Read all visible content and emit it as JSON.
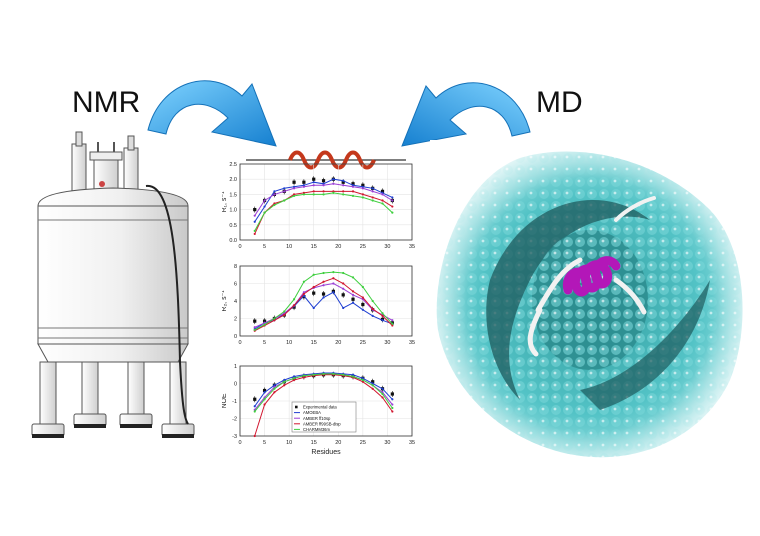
{
  "labels": {
    "left": "NMR",
    "right": "MD"
  },
  "colors": {
    "arrow": "#1e9be3",
    "helix": "#c4381c",
    "protein_surface": "#4fc7c9",
    "md_helix": "#b317b8",
    "experimental": "#111111",
    "amoeba": "#1f3fd1",
    "amber_f10sp": "#9b3fd6",
    "amber_ff99sb": "#d1162f",
    "charmm": "#3fcf3f"
  },
  "chart_data": [
    {
      "type": "line",
      "ylabel": "R₁, s⁻¹",
      "xlabel": "",
      "xlim": [
        0,
        35
      ],
      "ylim": [
        0.0,
        2.5
      ],
      "xticks": [
        0,
        5,
        10,
        15,
        20,
        25,
        30,
        35
      ],
      "yticks": [
        0.0,
        0.5,
        1.0,
        1.5,
        2.0,
        2.5
      ],
      "x": [
        3,
        5,
        7,
        9,
        11,
        13,
        15,
        17,
        19,
        21,
        23,
        25,
        27,
        29,
        31
      ],
      "series": [
        {
          "name": "Experimental data",
          "values": [
            1.0,
            1.3,
            1.5,
            1.6,
            1.9,
            1.9,
            2.0,
            1.95,
            2.0,
            1.9,
            1.85,
            1.8,
            1.7,
            1.6,
            1.3
          ]
        },
        {
          "name": "AMOEBA",
          "values": [
            0.6,
            1.1,
            1.6,
            1.7,
            1.75,
            1.8,
            1.9,
            1.85,
            2.0,
            1.95,
            1.8,
            1.75,
            1.7,
            1.55,
            1.4
          ]
        },
        {
          "name": "AMBER ff10sp",
          "values": [
            0.8,
            1.3,
            1.5,
            1.6,
            1.7,
            1.75,
            1.8,
            1.8,
            1.85,
            1.8,
            1.75,
            1.7,
            1.6,
            1.5,
            1.3
          ]
        },
        {
          "name": "AMBER ff99SB-disp",
          "values": [
            0.2,
            0.9,
            1.2,
            1.3,
            1.5,
            1.55,
            1.6,
            1.6,
            1.6,
            1.6,
            1.6,
            1.5,
            1.4,
            1.3,
            1.1
          ]
        },
        {
          "name": "CHARMM36m",
          "values": [
            0.3,
            0.9,
            1.15,
            1.3,
            1.45,
            1.5,
            1.5,
            1.5,
            1.55,
            1.5,
            1.45,
            1.4,
            1.3,
            1.2,
            0.9
          ]
        }
      ]
    },
    {
      "type": "line",
      "ylabel": "R₂, s⁻¹",
      "xlabel": "",
      "xlim": [
        0,
        35
      ],
      "ylim": [
        0,
        8
      ],
      "xticks": [
        0,
        5,
        10,
        15,
        20,
        25,
        30,
        35
      ],
      "yticks": [
        0,
        2,
        4,
        6,
        8
      ],
      "x": [
        3,
        5,
        7,
        9,
        11,
        13,
        15,
        17,
        19,
        21,
        23,
        25,
        27,
        29,
        31
      ],
      "series": [
        {
          "name": "Experimental data",
          "values": [
            1.7,
            1.7,
            2.0,
            2.4,
            3.3,
            4.5,
            4.9,
            4.8,
            5.1,
            4.7,
            4.2,
            3.6,
            3.0,
            1.9,
            1.5
          ]
        },
        {
          "name": "AMOEBA",
          "values": [
            0.8,
            1.5,
            1.8,
            2.5,
            3.4,
            4.6,
            3.2,
            4.4,
            5.0,
            3.2,
            3.8,
            3.0,
            2.3,
            1.8,
            1.4
          ]
        },
        {
          "name": "AMBER ff10sp",
          "values": [
            1.0,
            1.5,
            2.0,
            2.6,
            3.5,
            5.0,
            5.5,
            5.8,
            6.0,
            5.4,
            4.7,
            4.2,
            3.0,
            2.4,
            1.8
          ]
        },
        {
          "name": "AMBER ff99SB-disp",
          "values": [
            0.6,
            1.2,
            1.8,
            2.4,
            3.5,
            4.8,
            5.6,
            6.2,
            6.6,
            6.0,
            5.1,
            4.4,
            3.1,
            2.3,
            1.2
          ]
        },
        {
          "name": "CHARMM36m",
          "values": [
            0.7,
            1.3,
            2.0,
            2.8,
            4.2,
            6.2,
            7.0,
            7.2,
            7.3,
            7.2,
            6.7,
            5.6,
            4.0,
            2.6,
            1.4
          ]
        }
      ]
    },
    {
      "type": "line",
      "ylabel": "NOE",
      "xlabel": "Residues",
      "xlim": [
        0,
        35
      ],
      "ylim": [
        -3,
        1
      ],
      "xticks": [
        0,
        5,
        10,
        15,
        20,
        25,
        30,
        35
      ],
      "yticks": [
        -3,
        -2,
        -1,
        0,
        1
      ],
      "legend_position": "bottom-center",
      "x": [
        3,
        5,
        7,
        9,
        11,
        13,
        15,
        17,
        19,
        21,
        23,
        25,
        27,
        29,
        31
      ],
      "series": [
        {
          "name": "Experimental data",
          "values": [
            -0.9,
            -0.4,
            -0.1,
            0.1,
            0.3,
            0.4,
            0.45,
            0.5,
            0.5,
            0.45,
            0.4,
            0.3,
            0.1,
            -0.3,
            -0.6
          ]
        },
        {
          "name": "AMOEBA",
          "values": [
            -1.3,
            -0.5,
            -0.1,
            0.2,
            0.4,
            0.5,
            0.55,
            0.6,
            0.6,
            0.55,
            0.5,
            0.3,
            0.0,
            -0.3,
            -0.9
          ]
        },
        {
          "name": "AMBER ff10sp",
          "values": [
            -1.5,
            -0.8,
            -0.2,
            0.1,
            0.3,
            0.45,
            0.5,
            0.55,
            0.55,
            0.5,
            0.4,
            0.2,
            -0.1,
            -0.5,
            -1.2
          ]
        },
        {
          "name": "AMBER ff99SB-disp",
          "values": [
            -3.0,
            -1.2,
            -0.5,
            -0.1,
            0.2,
            0.35,
            0.45,
            0.5,
            0.5,
            0.45,
            0.35,
            0.1,
            -0.3,
            -0.8,
            -1.6
          ]
        },
        {
          "name": "CHARMM36m",
          "values": [
            -1.6,
            -0.9,
            -0.3,
            0.1,
            0.3,
            0.45,
            0.5,
            0.55,
            0.55,
            0.5,
            0.4,
            0.2,
            -0.1,
            -0.6,
            -1.4
          ]
        }
      ]
    }
  ]
}
